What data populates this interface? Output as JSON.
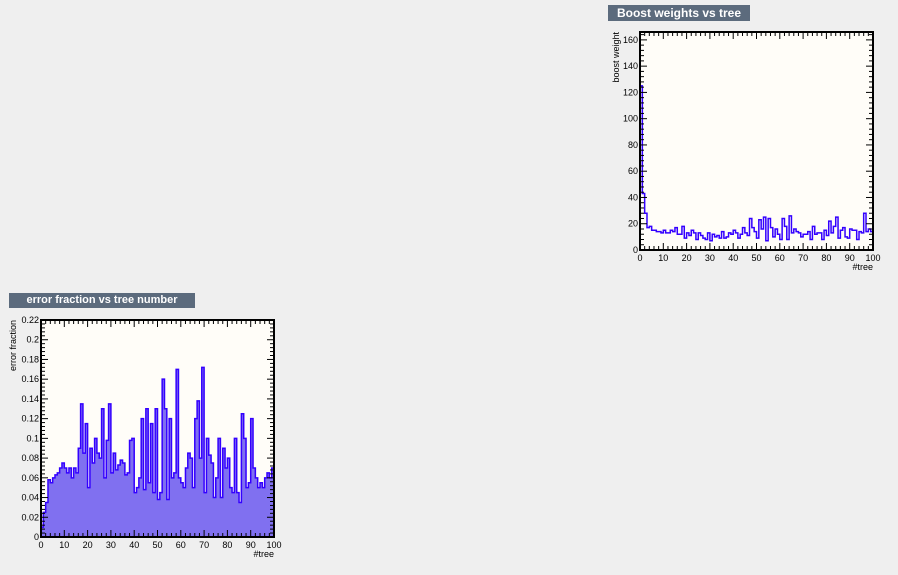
{
  "chart_data": [
    {
      "id": "boost",
      "type": "line",
      "title": "Boost weights vs tree",
      "xlabel": "#tree",
      "ylabel": "boost weight",
      "xlim": [
        0,
        100
      ],
      "ylim": [
        0,
        166
      ],
      "xticks": [
        "0",
        "10",
        "20",
        "30",
        "40",
        "50",
        "60",
        "70",
        "80",
        "90",
        "100"
      ],
      "yticks": [
        "0",
        "20",
        "40",
        "60",
        "80",
        "100",
        "120",
        "140",
        "160"
      ],
      "grid": false,
      "line_color": "#3300ff",
      "x": [
        0,
        1,
        2,
        3,
        4,
        5,
        6,
        7,
        8,
        9,
        10,
        11,
        12,
        13,
        14,
        15,
        16,
        17,
        18,
        19,
        20,
        21,
        22,
        23,
        24,
        25,
        26,
        27,
        28,
        29,
        30,
        31,
        32,
        33,
        34,
        35,
        36,
        37,
        38,
        39,
        40,
        41,
        42,
        43,
        44,
        45,
        46,
        47,
        48,
        49,
        50,
        51,
        52,
        53,
        54,
        55,
        56,
        57,
        58,
        59,
        60,
        61,
        62,
        63,
        64,
        65,
        66,
        67,
        68,
        69,
        70,
        71,
        72,
        73,
        74,
        75,
        76,
        77,
        78,
        79,
        80,
        81,
        82,
        83,
        84,
        85,
        86,
        87,
        88,
        89,
        90,
        91,
        92,
        93,
        94,
        95,
        96,
        97,
        98,
        99
      ],
      "values": [
        125,
        43,
        28,
        17,
        18,
        15,
        15,
        14,
        14,
        13,
        15,
        13,
        13,
        15,
        14,
        17,
        12,
        12,
        18,
        9,
        13,
        11,
        15,
        13,
        8,
        13,
        11,
        9,
        8,
        13,
        7,
        12,
        10,
        11,
        9,
        14,
        9,
        10,
        13,
        12,
        15,
        13,
        9,
        12,
        17,
        13,
        11,
        24,
        17,
        14,
        9,
        23,
        16,
        25,
        7,
        24,
        17,
        10,
        16,
        12,
        8,
        24,
        18,
        8,
        26,
        13,
        16,
        14,
        13,
        10,
        12,
        12,
        14,
        8,
        18,
        12,
        13,
        13,
        8,
        15,
        11,
        22,
        13,
        18,
        25,
        9,
        15,
        17,
        10,
        9,
        16,
        15,
        15,
        8,
        14,
        13,
        28,
        14,
        16,
        14
      ]
    },
    {
      "id": "error",
      "type": "line",
      "title": "error fraction vs tree number",
      "xlabel": "#tree",
      "ylabel": "error fraction",
      "xlim": [
        0,
        100
      ],
      "ylim": [
        0,
        0.22
      ],
      "xticks": [
        "0",
        "10",
        "20",
        "30",
        "40",
        "50",
        "60",
        "70",
        "80",
        "90",
        "100"
      ],
      "yticks": [
        "0",
        "0.02",
        "0.04",
        "0.06",
        "0.08",
        "0.1",
        "0.12",
        "0.14",
        "0.16",
        "0.18",
        "0.2",
        "0.22"
      ],
      "grid": false,
      "line_color": "#3300ff",
      "fill_color": "#8070f0",
      "x": [
        0,
        1,
        2,
        3,
        4,
        5,
        6,
        7,
        8,
        9,
        10,
        11,
        12,
        13,
        14,
        15,
        16,
        17,
        18,
        19,
        20,
        21,
        22,
        23,
        24,
        25,
        26,
        27,
        28,
        29,
        30,
        31,
        32,
        33,
        34,
        35,
        36,
        37,
        38,
        39,
        40,
        41,
        42,
        43,
        44,
        45,
        46,
        47,
        48,
        49,
        50,
        51,
        52,
        53,
        54,
        55,
        56,
        57,
        58,
        59,
        60,
        61,
        62,
        63,
        64,
        65,
        66,
        67,
        68,
        69,
        70,
        71,
        72,
        73,
        74,
        75,
        76,
        77,
        78,
        79,
        80,
        81,
        82,
        83,
        84,
        85,
        86,
        87,
        88,
        89,
        90,
        91,
        92,
        93,
        94,
        95,
        96,
        97,
        98,
        99
      ],
      "values": [
        0.01,
        0.025,
        0.035,
        0.058,
        0.055,
        0.06,
        0.063,
        0.065,
        0.07,
        0.075,
        0.07,
        0.065,
        0.07,
        0.06,
        0.07,
        0.065,
        0.09,
        0.135,
        0.085,
        0.115,
        0.05,
        0.09,
        0.075,
        0.1,
        0.085,
        0.08,
        0.13,
        0.06,
        0.098,
        0.135,
        0.065,
        0.085,
        0.068,
        0.073,
        0.078,
        0.075,
        0.063,
        0.065,
        0.098,
        0.1,
        0.045,
        0.05,
        0.06,
        0.12,
        0.048,
        0.13,
        0.055,
        0.115,
        0.045,
        0.13,
        0.038,
        0.045,
        0.16,
        0.13,
        0.038,
        0.12,
        0.06,
        0.065,
        0.17,
        0.06,
        0.055,
        0.05,
        0.07,
        0.085,
        0.08,
        0.05,
        0.12,
        0.138,
        0.08,
        0.172,
        0.045,
        0.1,
        0.083,
        0.075,
        0.04,
        0.06,
        0.1,
        0.04,
        0.09,
        0.07,
        0.08,
        0.05,
        0.045,
        0.1,
        0.045,
        0.035,
        0.125,
        0.1,
        0.05,
        0.055,
        0.12,
        0.07,
        0.06,
        0.05,
        0.055,
        0.05,
        0.06,
        0.065,
        0.06,
        0.07
      ]
    }
  ]
}
